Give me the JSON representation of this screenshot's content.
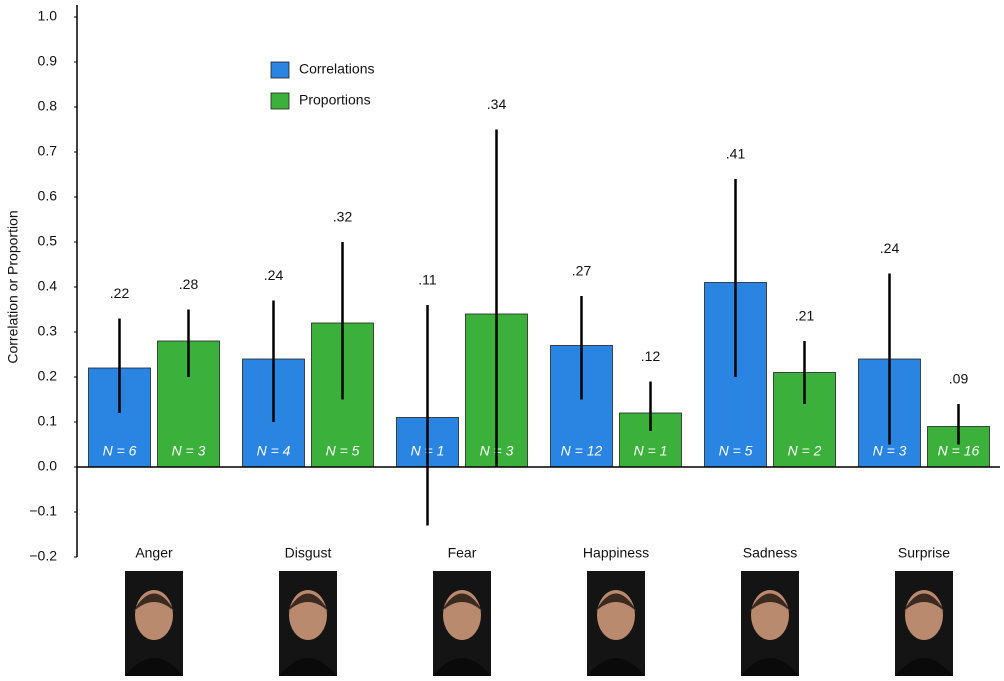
{
  "chart_data": {
    "type": "bar",
    "y_label": "Correlation or Proportion",
    "categories": [
      "Anger",
      "Disgust",
      "Fear",
      "Happiness",
      "Sadness",
      "Surprise"
    ],
    "series": [
      {
        "name": "Correlations",
        "color": "#2a84e2",
        "values": [
          0.22,
          0.24,
          0.11,
          0.27,
          0.41,
          0.24
        ],
        "value_labels": [
          ".22",
          ".24",
          ".11",
          ".27",
          ".41",
          ".24"
        ],
        "ci_lower": [
          0.12,
          0.1,
          -0.13,
          0.15,
          0.2,
          0.05
        ],
        "ci_upper": [
          0.33,
          0.37,
          0.36,
          0.38,
          0.64,
          0.43
        ],
        "n_labels": [
          "N = 6",
          "N = 4",
          "N = 1",
          "N = 12",
          "N = 5",
          "N = 3"
        ]
      },
      {
        "name": "Proportions",
        "color": "#3bb03b",
        "values": [
          0.28,
          0.32,
          0.34,
          0.12,
          0.21,
          0.09
        ],
        "value_labels": [
          ".28",
          ".32",
          ".34",
          ".12",
          ".21",
          ".09"
        ],
        "ci_lower": [
          0.2,
          0.15,
          0.0,
          0.08,
          0.14,
          0.05
        ],
        "ci_upper": [
          0.35,
          0.5,
          0.75,
          0.19,
          0.28,
          0.14
        ],
        "n_labels": [
          "N = 3",
          "N = 5",
          "N = 3",
          "N = 1",
          "N = 2",
          "N = 16"
        ]
      }
    ],
    "ylim": [
      -0.2,
      1.0
    ],
    "yticks": [
      {
        "value": -0.2,
        "label": "−0.2"
      },
      {
        "value": -0.1,
        "label": "−0.1"
      },
      {
        "value": 0,
        "label": "0.0"
      },
      0.1,
      0.2,
      0.3,
      0.4,
      0.5,
      0.6,
      0.7,
      0.8,
      0.9,
      {
        "value": 1.0,
        "label": "1.0"
      }
    ],
    "grid": false,
    "legend": "upper-left"
  }
}
